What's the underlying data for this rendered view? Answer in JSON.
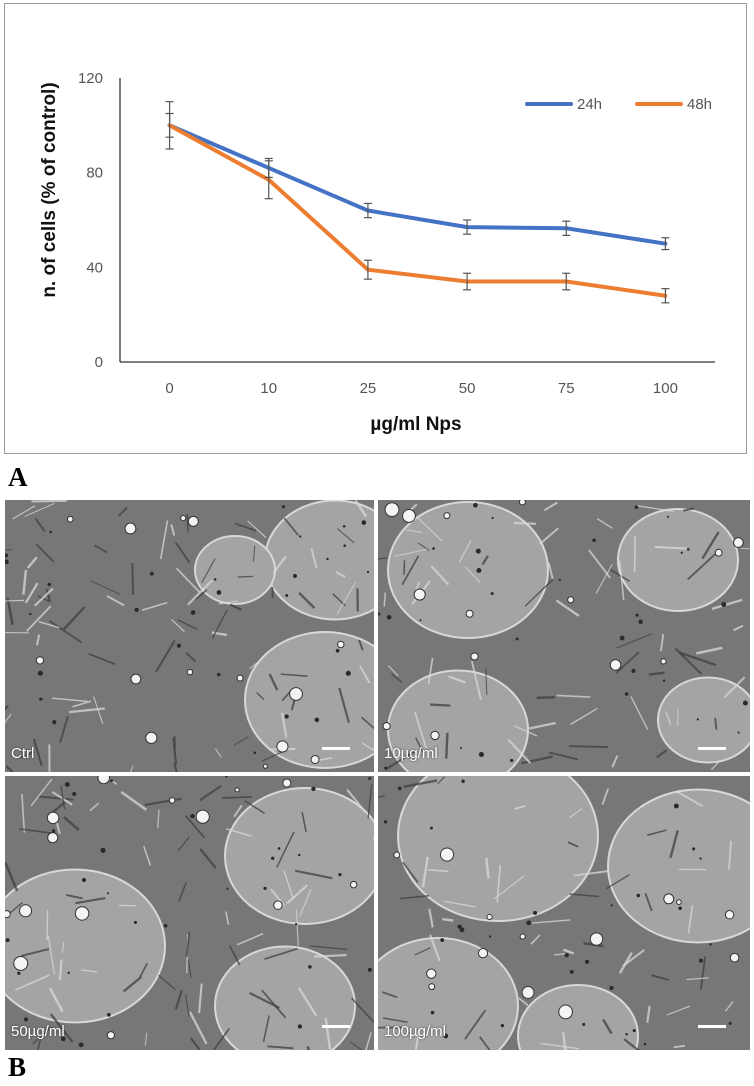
{
  "figure": {
    "panel_a_letter": "A",
    "panel_b_letter": "B"
  },
  "chart_data": {
    "type": "line",
    "categories": [
      "0",
      "10",
      "25",
      "50",
      "75",
      "100"
    ],
    "series": [
      {
        "name": "24h",
        "color": "#4472C4",
        "values": [
          100,
          82,
          64,
          57,
          56.5,
          50
        ],
        "errors": [
          5,
          4,
          3,
          3,
          3,
          2.5
        ]
      },
      {
        "name": "48h",
        "color": "#ED7D31",
        "values": [
          100,
          77,
          39,
          34,
          34,
          28
        ],
        "errors": [
          10,
          8,
          4,
          3.5,
          3.5,
          3
        ]
      }
    ],
    "xlabel": "µg/ml Nps",
    "ylabel": "n. of cells (% of control)",
    "ylim": [
      0,
      120
    ],
    "yticks": [
      "0",
      "40",
      "80",
      "120"
    ],
    "grid": false,
    "legend_position": "top-right"
  },
  "micrographs": [
    {
      "label": "Ctrl"
    },
    {
      "label": "10µg/ml"
    },
    {
      "label": "50µg/ml"
    },
    {
      "label": "100µg/ml"
    }
  ]
}
